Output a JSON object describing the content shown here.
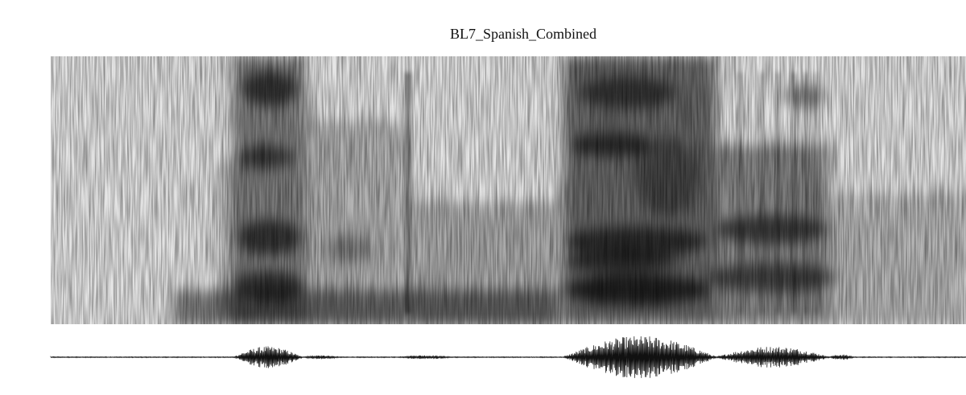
{
  "title": "BL7_Spanish_Combined"
}
